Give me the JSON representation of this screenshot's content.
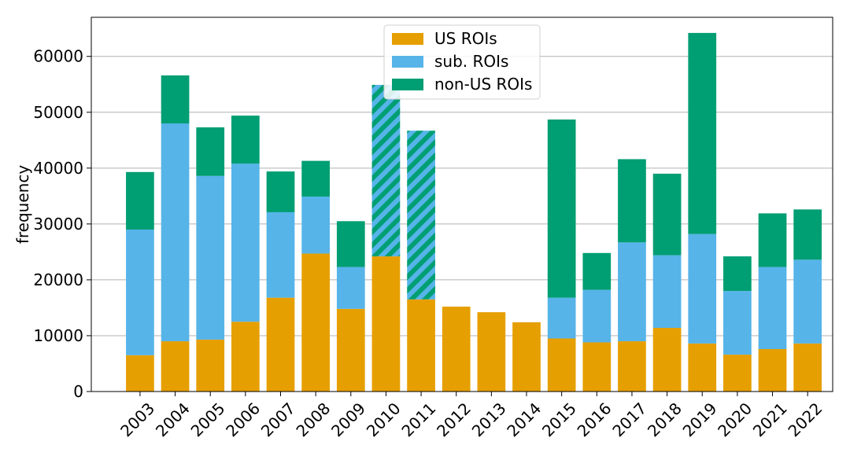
{
  "chart_data": {
    "type": "bar",
    "stacked": true,
    "title": "",
    "xlabel": "",
    "ylabel": "frequency",
    "ylim": [
      0,
      67000
    ],
    "yticks": [
      0,
      10000,
      20000,
      30000,
      40000,
      50000,
      60000
    ],
    "ytick_labels": [
      "0",
      "10000",
      "20000",
      "30000",
      "40000",
      "50000",
      "60000"
    ],
    "grid": "horizontal",
    "legend_position": "top-center",
    "categories": [
      "2003",
      "2004",
      "2005",
      "2006",
      "2007",
      "2008",
      "2009",
      "2010",
      "2011",
      "2012",
      "2013",
      "2014",
      "2015",
      "2016",
      "2017",
      "2018",
      "2019",
      "2020",
      "2021",
      "2022"
    ],
    "hatched_categories": [
      "2010",
      "2011"
    ],
    "series": [
      {
        "name": "US ROIs",
        "color": "#E69F00",
        "values": [
          6500,
          9000,
          9300,
          12500,
          16800,
          24700,
          14800,
          24200,
          16500,
          15200,
          14200,
          12400,
          9500,
          8800,
          9000,
          11400,
          8600,
          6600,
          7600,
          8600
        ]
      },
      {
        "name": "sub. ROIs",
        "color": "#56B4E9",
        "values": [
          22500,
          39000,
          29300,
          28300,
          15300,
          10200,
          7500,
          0,
          0,
          0,
          0,
          0,
          7300,
          9400,
          17700,
          13000,
          19600,
          11400,
          14700,
          15000
        ]
      },
      {
        "name": "non-US ROIs",
        "color": "#009E73",
        "values": [
          10300,
          8600,
          8700,
          8600,
          7300,
          6400,
          8200,
          30700,
          30200,
          0,
          0,
          0,
          31900,
          6600,
          14900,
          14600,
          36000,
          6200,
          9600,
          9000
        ]
      }
    ]
  }
}
